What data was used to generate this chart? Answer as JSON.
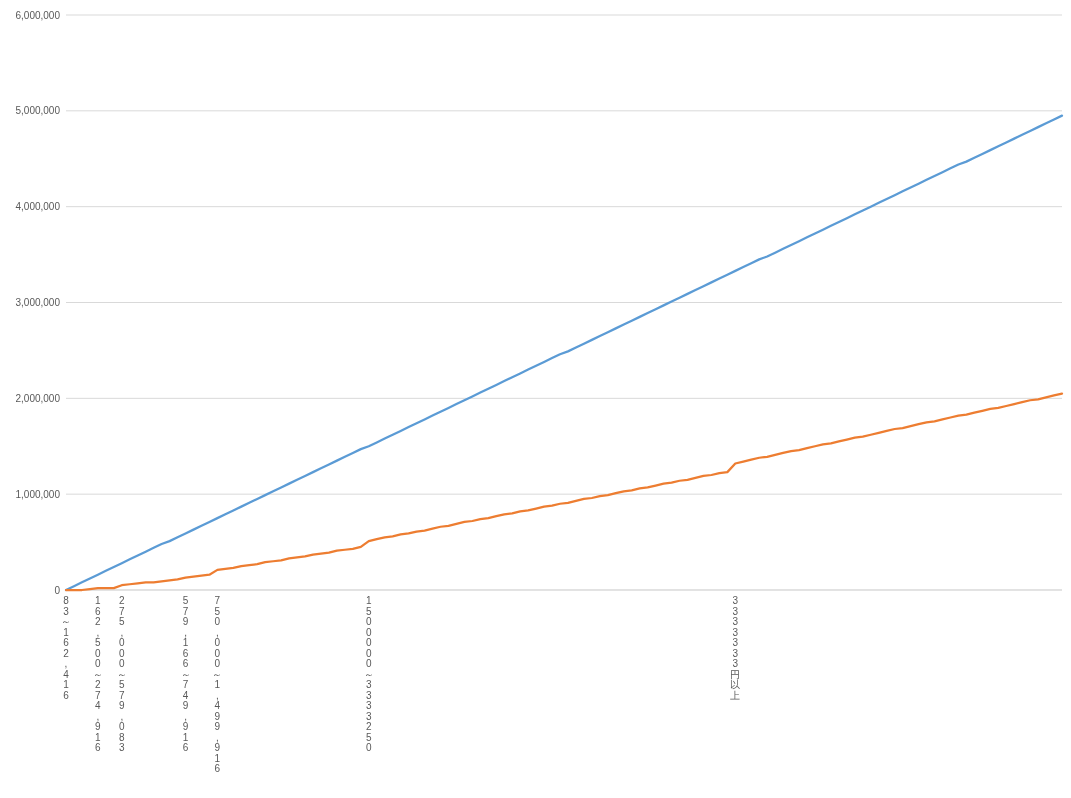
{
  "chart_data": {
    "type": "line",
    "categories": [
      "83～162,416",
      null,
      null,
      null,
      "162,500～274,916",
      null,
      null,
      "275,000～579,083",
      null,
      null,
      null,
      null,
      null,
      null,
      null,
      "579,166～749,916",
      null,
      null,
      null,
      "750,000～1,499,916",
      null,
      null,
      null,
      null,
      null,
      null,
      null,
      null,
      null,
      null,
      null,
      null,
      null,
      null,
      null,
      null,
      null,
      null,
      "1500000～3333250",
      null,
      null,
      null,
      null,
      null,
      null,
      null,
      null,
      null,
      null,
      null,
      null,
      null,
      null,
      null,
      null,
      null,
      null,
      null,
      null,
      null,
      null,
      null,
      null,
      null,
      null,
      null,
      null,
      null,
      null,
      null,
      null,
      null,
      null,
      null,
      null,
      null,
      null,
      null,
      null,
      null,
      null,
      null,
      null,
      null,
      "3333333円以上",
      null,
      null,
      null,
      null,
      null,
      null,
      null,
      null,
      null,
      null,
      null,
      null,
      null,
      null,
      null,
      null,
      null,
      null,
      null,
      null,
      null,
      null,
      null,
      null,
      null,
      null,
      null,
      null,
      null,
      null,
      null,
      null,
      null,
      null,
      null,
      null,
      null,
      null,
      null,
      null,
      null
    ],
    "ylim": [
      0,
      6000000
    ],
    "yticks": [
      {
        "value": 0,
        "label": "0"
      },
      {
        "value": 1000000,
        "label": "1,000,000"
      },
      {
        "value": 2000000,
        "label": "2,000,000"
      },
      {
        "value": 3000000,
        "label": "3,000,000"
      },
      {
        "value": 4000000,
        "label": "4,000,000"
      },
      {
        "value": 5000000,
        "label": "5,000,000"
      },
      {
        "value": 6000000,
        "label": "6,000,000"
      }
    ],
    "grid": "y",
    "series": [
      {
        "color": "#5b9bd5",
        "values": [
          0,
          40000,
          80000,
          120000,
          160000,
          200000,
          240000,
          280000,
          320000,
          360000,
          400000,
          440000,
          480000,
          510000,
          550000,
          590000,
          630000,
          670000,
          710000,
          750000,
          790000,
          830000,
          870000,
          910000,
          950000,
          990000,
          1030000,
          1070000,
          1110000,
          1150000,
          1190000,
          1230000,
          1270000,
          1310000,
          1350000,
          1390000,
          1430000,
          1470000,
          1500000,
          1540000,
          1580000,
          1620000,
          1660000,
          1700000,
          1740000,
          1780000,
          1820000,
          1860000,
          1900000,
          1940000,
          1980000,
          2020000,
          2060000,
          2100000,
          2140000,
          2180000,
          2220000,
          2260000,
          2300000,
          2340000,
          2380000,
          2420000,
          2460000,
          2490000,
          2530000,
          2570000,
          2610000,
          2650000,
          2690000,
          2730000,
          2770000,
          2810000,
          2850000,
          2890000,
          2930000,
          2970000,
          3010000,
          3050000,
          3090000,
          3130000,
          3170000,
          3210000,
          3250000,
          3290000,
          3330000,
          3370000,
          3410000,
          3450000,
          3480000,
          3520000,
          3560000,
          3600000,
          3640000,
          3680000,
          3720000,
          3760000,
          3800000,
          3840000,
          3880000,
          3920000,
          3960000,
          4000000,
          4040000,
          4080000,
          4120000,
          4160000,
          4200000,
          4240000,
          4280000,
          4320000,
          4360000,
          4400000,
          4440000,
          4470000,
          4510000,
          4550000,
          4590000,
          4630000,
          4670000,
          4710000,
          4750000,
          4790000,
          4830000,
          4870000,
          4910000,
          4950000
        ]
      },
      {
        "color": "#ed7d31",
        "values": [
          0,
          0,
          0,
          10000,
          20000,
          20000,
          20000,
          50000,
          60000,
          70000,
          80000,
          80000,
          90000,
          100000,
          110000,
          130000,
          140000,
          150000,
          160000,
          210000,
          220000,
          230000,
          250000,
          260000,
          270000,
          290000,
          300000,
          310000,
          330000,
          340000,
          350000,
          370000,
          380000,
          390000,
          410000,
          420000,
          430000,
          450000,
          510000,
          530000,
          550000,
          560000,
          580000,
          590000,
          610000,
          620000,
          640000,
          660000,
          670000,
          690000,
          710000,
          720000,
          740000,
          750000,
          770000,
          790000,
          800000,
          820000,
          830000,
          850000,
          870000,
          880000,
          900000,
          910000,
          930000,
          950000,
          960000,
          980000,
          990000,
          1010000,
          1030000,
          1040000,
          1060000,
          1070000,
          1090000,
          1110000,
          1120000,
          1140000,
          1150000,
          1170000,
          1190000,
          1200000,
          1220000,
          1230000,
          1320000,
          1340000,
          1360000,
          1380000,
          1390000,
          1410000,
          1430000,
          1450000,
          1460000,
          1480000,
          1500000,
          1520000,
          1530000,
          1550000,
          1570000,
          1590000,
          1600000,
          1620000,
          1640000,
          1660000,
          1680000,
          1690000,
          1710000,
          1730000,
          1750000,
          1760000,
          1780000,
          1800000,
          1820000,
          1830000,
          1850000,
          1870000,
          1890000,
          1900000,
          1920000,
          1940000,
          1960000,
          1980000,
          1990000,
          2010000,
          2030000,
          2050000
        ]
      }
    ]
  }
}
